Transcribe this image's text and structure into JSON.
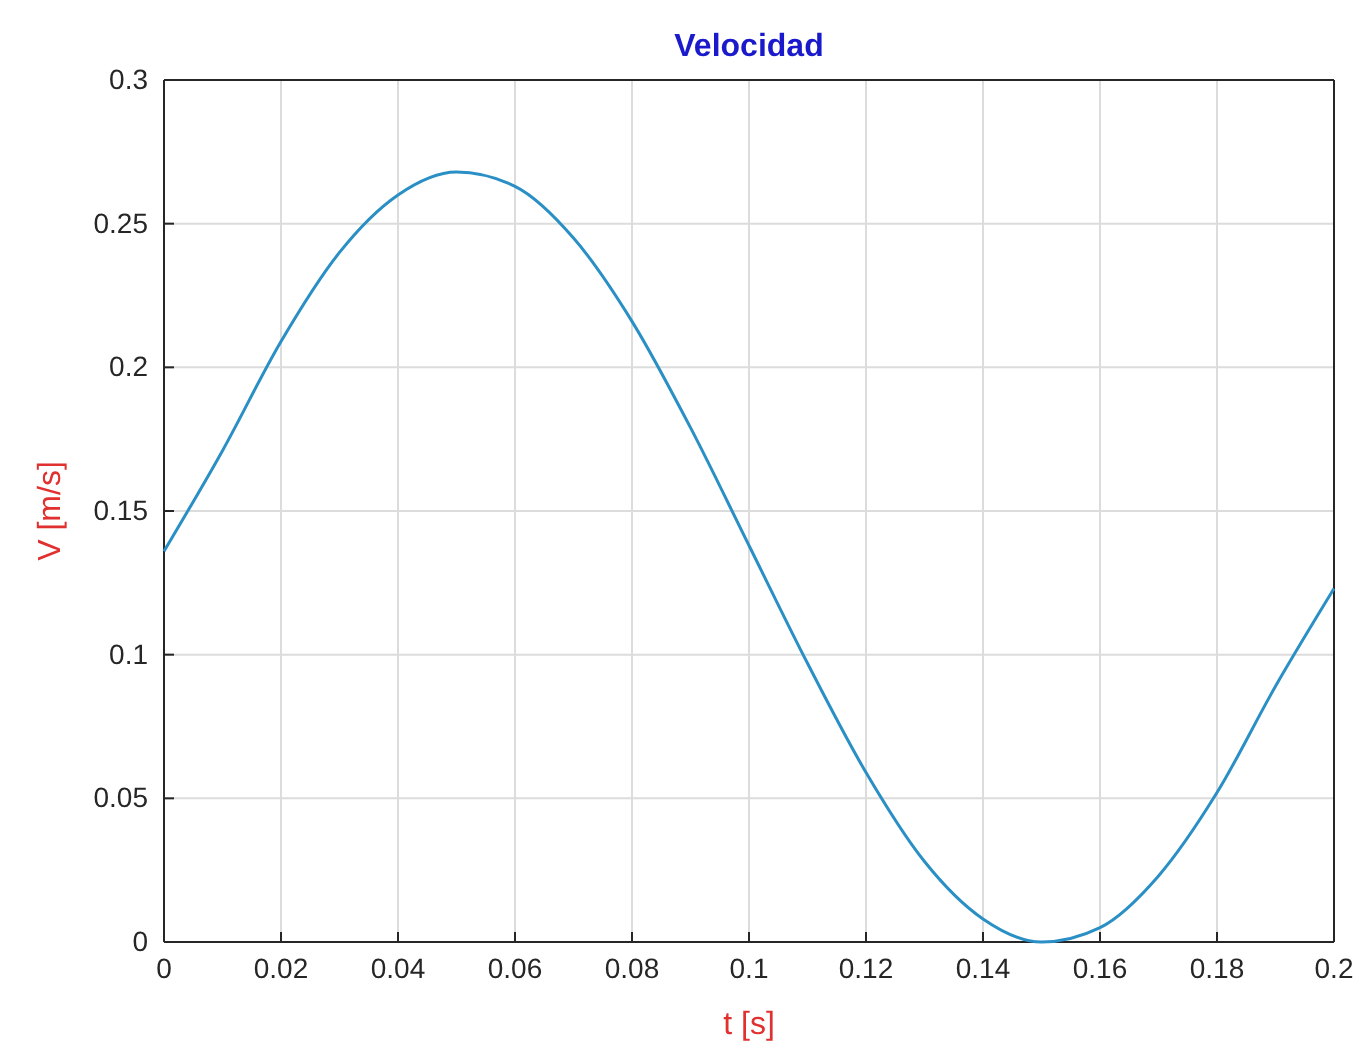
{
  "chart_data": {
    "type": "line",
    "title": "Velocidad",
    "xlabel": "t [s]",
    "ylabel": "V [m/s]",
    "x": [
      0,
      0.01,
      0.02,
      0.03,
      0.04,
      0.05,
      0.06,
      0.07,
      0.08,
      0.09,
      0.1,
      0.11,
      0.12,
      0.13,
      0.14,
      0.15,
      0.16,
      0.17,
      0.18,
      0.19,
      0.2
    ],
    "series": [
      {
        "color": "#2a8fc4",
        "values": [
          0.136,
          0.171,
          0.209,
          0.24,
          0.26,
          0.268,
          0.263,
          0.245,
          0.216,
          0.179,
          0.138,
          0.097,
          0.059,
          0.028,
          0.008,
          0,
          0.005,
          0.023,
          0.052,
          0.089,
          0.123
        ]
      }
    ],
    "xlim": [
      0,
      0.2
    ],
    "ylim": [
      0,
      0.3
    ],
    "xticks": [
      0,
      0.02,
      0.04,
      0.06,
      0.08,
      0.1,
      0.12,
      0.14,
      0.16,
      0.18,
      0.2
    ],
    "yticks": [
      0,
      0.05,
      0.1,
      0.15,
      0.2,
      0.25,
      0.3
    ],
    "grid": true,
    "line_style": "solid"
  }
}
